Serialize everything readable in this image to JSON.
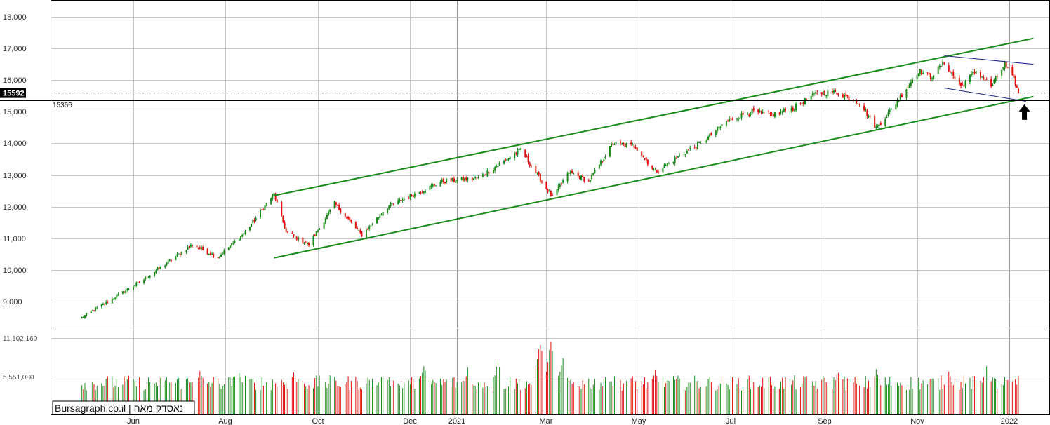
{
  "watermark": "Bursagraph.co.il | נאסדק מאה",
  "current_price_label": "15592",
  "reference_level_label": "15366",
  "volume_tick_labels": [
    "11,102,160",
    "5,551,080"
  ],
  "chart_data": {
    "type": "candlestick",
    "y_ticks": [
      9000,
      10000,
      11000,
      12000,
      13000,
      14000,
      15000,
      16000,
      17000,
      18000
    ],
    "y_tick_labels": [
      "9,000",
      "10,000",
      "11,000",
      "12,000",
      "13,000",
      "14,000",
      "15,000",
      "16,000",
      "17,000",
      "18,000"
    ],
    "ylim": [
      8000,
      18500
    ],
    "x_labels": [
      "Jun",
      "Aug",
      "Oct",
      "Dec",
      "2021",
      "Mar",
      "May",
      "Jul",
      "Sep",
      "Nov",
      "2022"
    ],
    "current_price": 15592,
    "reference_level": 15366,
    "volume_ticks": [
      11102160,
      5551080
    ],
    "price_path": [
      [
        "2020-04-28",
        8500
      ],
      [
        "2020-05-15",
        9000
      ],
      [
        "2020-06-08",
        9700
      ],
      [
        "2020-07-10",
        10800
      ],
      [
        "2020-07-27",
        10400
      ],
      [
        "2020-08-14",
        11200
      ],
      [
        "2020-09-02",
        12400
      ],
      [
        "2020-09-10",
        11200
      ],
      [
        "2020-09-25",
        10800
      ],
      [
        "2020-10-12",
        12100
      ],
      [
        "2020-10-30",
        11100
      ],
      [
        "2020-11-16",
        12000
      ],
      [
        "2020-12-04",
        12400
      ],
      [
        "2020-12-22",
        12800
      ],
      [
        "2021-01-15",
        12900
      ],
      [
        "2021-02-12",
        13800
      ],
      [
        "2021-03-05",
        12300
      ],
      [
        "2021-03-16",
        13100
      ],
      [
        "2021-03-29",
        12800
      ],
      [
        "2021-04-14",
        14000
      ],
      [
        "2021-04-29",
        13900
      ],
      [
        "2021-05-12",
        13100
      ],
      [
        "2021-05-28",
        13600
      ],
      [
        "2021-06-14",
        14100
      ],
      [
        "2021-06-28",
        14700
      ],
      [
        "2021-07-14",
        15000
      ],
      [
        "2021-07-28",
        14900
      ],
      [
        "2021-08-11",
        15100
      ],
      [
        "2021-08-27",
        15600
      ],
      [
        "2021-09-09",
        15600
      ],
      [
        "2021-09-24",
        15300
      ],
      [
        "2021-10-05",
        14500
      ],
      [
        "2021-10-14",
        15000
      ],
      [
        "2021-11-02",
        16300
      ],
      [
        "2021-11-10",
        16100
      ],
      [
        "2021-11-19",
        16550
      ],
      [
        "2021-11-30",
        15800
      ],
      [
        "2021-12-10",
        16300
      ],
      [
        "2021-12-20",
        15800
      ],
      [
        "2021-12-29",
        16500
      ],
      [
        "2022-01-05",
        15900
      ],
      [
        "2022-01-07",
        15592
      ]
    ],
    "volume_range": [
      3500000,
      7500000
    ],
    "volume_spikes": [
      [
        "2020-06-20",
        6500000
      ],
      [
        "2020-07-15",
        6500000
      ],
      [
        "2020-08-10",
        6300000
      ],
      [
        "2020-09-15",
        6400000
      ],
      [
        "2020-11-15",
        6300000
      ],
      [
        "2020-12-10",
        7300000
      ],
      [
        "2021-01-08",
        7000000
      ],
      [
        "2021-01-28",
        8200000
      ],
      [
        "2021-02-25",
        11102160
      ],
      [
        "2021-03-04",
        10700000
      ],
      [
        "2021-03-12",
        8300000
      ],
      [
        "2021-04-10",
        6800000
      ],
      [
        "2021-05-12",
        6600000
      ],
      [
        "2021-09-10",
        6700000
      ],
      [
        "2021-10-05",
        6900000
      ],
      [
        "2021-11-22",
        6900000
      ],
      [
        "2021-12-17",
        7700000
      ]
    ],
    "trend_lines": [
      {
        "name": "channel-top",
        "color": "#1a8a1a",
        "points": [
          [
            "2020-09-02",
            12350
          ],
          [
            "2022-01-17",
            17320
          ]
        ]
      },
      {
        "name": "channel-bottom",
        "color": "#1a8a1a",
        "points": [
          [
            "2020-09-02",
            10380
          ],
          [
            "2022-01-17",
            15480
          ]
        ]
      },
      {
        "name": "wedge-top",
        "color": "#1a237e",
        "points": [
          [
            "2021-11-19",
            16770
          ],
          [
            "2022-01-17",
            16500
          ]
        ]
      },
      {
        "name": "wedge-bottom",
        "color": "#1a237e",
        "points": [
          [
            "2021-11-19",
            15750
          ],
          [
            "2022-01-12",
            15330
          ]
        ]
      }
    ],
    "annotations": [
      {
        "type": "arrow-up",
        "date": "2022-01-11",
        "color": "#000000"
      }
    ],
    "colors": {
      "up": "#1b8a1b",
      "down": "#e01010",
      "grid": "#c8c8c8",
      "frame": "#000000"
    },
    "grid": true
  }
}
